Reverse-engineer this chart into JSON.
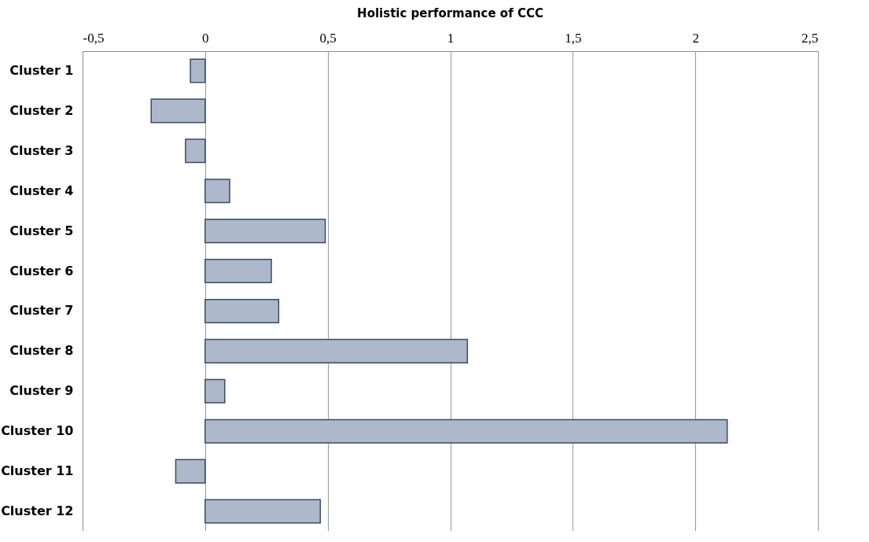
{
  "chart_data": {
    "type": "bar",
    "orientation": "horizontal",
    "title": "Holistic performance of CCC",
    "categories": [
      "Cluster 1",
      "Cluster 2",
      "Cluster 3",
      "Cluster 4",
      "Cluster 5",
      "Cluster 6",
      "Cluster 7",
      "Cluster 8",
      "Cluster 9",
      "Cluster 10",
      "Cluster 11",
      "Cluster 12"
    ],
    "values": [
      -0.06,
      -0.22,
      -0.08,
      0.1,
      0.49,
      0.27,
      0.3,
      1.07,
      0.08,
      2.13,
      -0.12,
      0.47
    ],
    "color": "#adb9ca",
    "xlim": [
      -0.5,
      2.5
    ],
    "xticks": [
      {
        "value": -0.5,
        "label": "-0,5"
      },
      0,
      {
        "value": 0.5,
        "label": "0,5"
      },
      1,
      {
        "value": 1.5,
        "label": "1,5"
      },
      2,
      {
        "value": 2.5,
        "label": "2,5"
      }
    ],
    "grid": "x"
  }
}
